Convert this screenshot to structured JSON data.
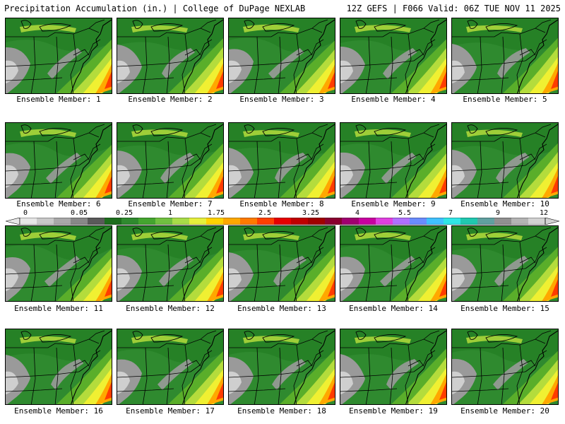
{
  "header": {
    "title": "Precipitation Accumulation (in.) | College of DuPage NEXLAB",
    "valid": "12Z GEFS | F066 Valid: 06Z TUE NOV 11 2025"
  },
  "panels": [
    {
      "label": "Ensemble Member: 1"
    },
    {
      "label": "Ensemble Member: 2"
    },
    {
      "label": "Ensemble Member: 3"
    },
    {
      "label": "Ensemble Member: 4"
    },
    {
      "label": "Ensemble Member: 5"
    },
    {
      "label": "Ensemble Member: 6"
    },
    {
      "label": "Ensemble Member: 7"
    },
    {
      "label": "Ensemble Member: 8"
    },
    {
      "label": "Ensemble Member: 9"
    },
    {
      "label": "Ensemble Member: 10"
    },
    {
      "label": "Ensemble Member: 11"
    },
    {
      "label": "Ensemble Member: 12"
    },
    {
      "label": "Ensemble Member: 13"
    },
    {
      "label": "Ensemble Member: 14"
    },
    {
      "label": "Ensemble Member: 15"
    },
    {
      "label": "Ensemble Member: 16"
    },
    {
      "label": "Ensemble Member: 17"
    },
    {
      "label": "Ensemble Member: 18"
    },
    {
      "label": "Ensemble Member: 19"
    },
    {
      "label": "Ensemble Member: 20"
    }
  ],
  "legend": {
    "tick_labels": [
      "0",
      "0.05",
      "0.25",
      "1",
      "1.75",
      "2.5",
      "3.25",
      "4",
      "5.5",
      "7",
      "9",
      "12"
    ],
    "colors": [
      "#e6e6e6",
      "#c8c8c8",
      "#a8a8a8",
      "#888888",
      "#5a5a5a",
      "#1e6e1e",
      "#2f8a2f",
      "#44a52f",
      "#70c040",
      "#a8dc48",
      "#e6f03c",
      "#ffd200",
      "#ffa800",
      "#ff7a00",
      "#ff4000",
      "#e60000",
      "#c00000",
      "#a00000",
      "#8a0030",
      "#a00070",
      "#c800a0",
      "#e040e0",
      "#b070ff",
      "#6a8cff",
      "#40c0ff",
      "#30e6e6",
      "#20c8b0",
      "#60a0a0",
      "#909090",
      "#b4b4b4",
      "#d2d2d2"
    ]
  },
  "colors": {
    "green_dark": "#1f7a1f",
    "green": "#2f8a2f",
    "green_light": "#5aae2a",
    "yellow_green": "#b4dc3c",
    "yellow": "#f0f032",
    "orange": "#ffa800",
    "red": "#ff3c00",
    "gray": "#9a9a9a",
    "gray_light": "#cfcfcf"
  }
}
